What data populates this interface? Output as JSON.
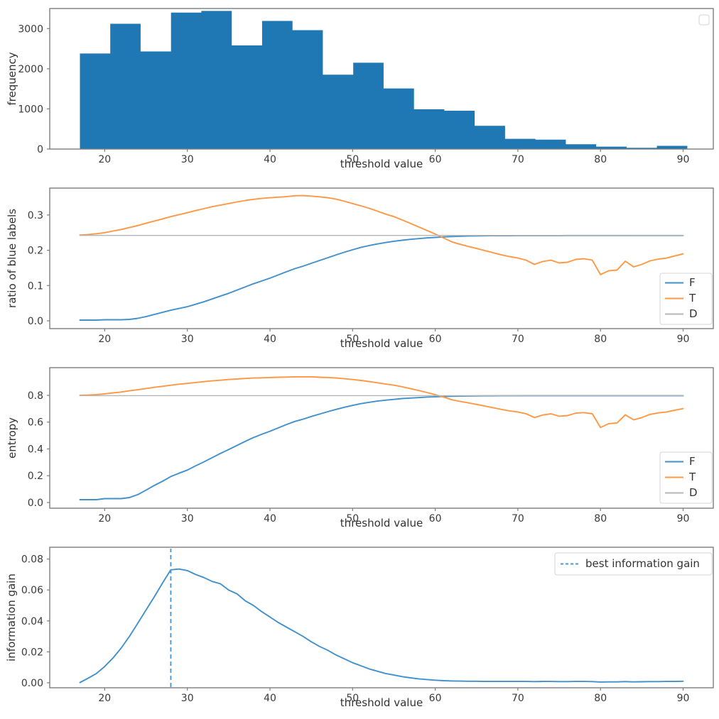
{
  "figure": {
    "background": "#ffffff"
  },
  "palette": {
    "hist_fill": "#1f77b4",
    "line_blue": "#4191cd",
    "line_orange": "#ff9844",
    "line_gray": "#b5b5b5",
    "dashed_blue": "#4a9bd5",
    "spine": "#7d7d7d",
    "tick_text": "#3a3a3a",
    "legend_border": "#d4d4d4"
  },
  "chart_data": [
    {
      "type": "histogram",
      "title": "",
      "xlabel": "threshold value",
      "ylabel": "frequency",
      "xlim": [
        13.35,
        93.65
      ],
      "ylim": [
        0,
        3500
      ],
      "xticks": [
        20,
        30,
        40,
        50,
        60,
        70,
        80,
        90
      ],
      "xtick_labels": [
        "20",
        "30",
        "40",
        "50",
        "60",
        "70",
        "80",
        "90"
      ],
      "yticks": [
        0,
        1000,
        2000,
        3000
      ],
      "ytick_labels": [
        "0",
        "1000",
        "2000",
        "3000"
      ],
      "grid": false,
      "bins": {
        "start": 17,
        "width": 3.675
      },
      "values": [
        2380,
        3120,
        2430,
        3400,
        3440,
        2580,
        3190,
        2960,
        1850,
        2150,
        1510,
        990,
        955,
        580,
        255,
        235,
        120,
        60,
        30,
        80
      ],
      "color": "hist_fill",
      "legend": {
        "position": "upper right",
        "empty": true,
        "entries": []
      }
    },
    {
      "type": "line",
      "title": "",
      "xlabel": "threshold value",
      "ylabel": "ratio of blue labels",
      "xlim": [
        13.35,
        93.65
      ],
      "ylim": [
        -0.0221,
        0.3763
      ],
      "xticks": [
        20,
        30,
        40,
        50,
        60,
        70,
        80,
        90
      ],
      "xtick_labels": [
        "20",
        "30",
        "40",
        "50",
        "60",
        "70",
        "80",
        "90"
      ],
      "yticks": [
        0,
        0.1,
        0.2,
        0.3
      ],
      "ytick_labels": [
        "0.0",
        "0.1",
        "0.2",
        "0.3"
      ],
      "grid": false,
      "x_start": 17,
      "x_step": 1,
      "x_count": 74,
      "series": [
        {
          "name": "F",
          "color": "line_blue",
          "values": [
            0.002,
            0.002,
            0.002,
            0.003,
            0.003,
            0.003,
            0.004,
            0.007,
            0.012,
            0.018,
            0.024,
            0.03,
            0.035,
            0.04,
            0.047,
            0.054,
            0.062,
            0.07,
            0.078,
            0.087,
            0.096,
            0.105,
            0.113,
            0.121,
            0.13,
            0.139,
            0.148,
            0.155,
            0.163,
            0.171,
            0.179,
            0.187,
            0.1945,
            0.2015,
            0.208,
            0.2135,
            0.218,
            0.222,
            0.2255,
            0.2285,
            0.231,
            0.233,
            0.235,
            0.2365,
            0.2378,
            0.2388,
            0.2396,
            0.2402,
            0.2407,
            0.241,
            0.2412,
            0.2414,
            0.2415,
            0.2416,
            0.2416,
            0.2417,
            0.2417,
            0.2417,
            0.2417,
            0.2418,
            0.2418,
            0.2418,
            0.2418,
            0.2418,
            0.2418,
            0.2418,
            0.2418,
            0.2418,
            0.2418,
            0.2418,
            0.2418,
            0.2418,
            0.2418,
            0.2418
          ]
        },
        {
          "name": "T",
          "color": "line_orange",
          "values": [
            0.243,
            0.2445,
            0.247,
            0.25,
            0.2545,
            0.259,
            0.2645,
            0.27,
            0.2765,
            0.283,
            0.289,
            0.2955,
            0.301,
            0.3065,
            0.3125,
            0.318,
            0.3235,
            0.328,
            0.3325,
            0.337,
            0.341,
            0.3445,
            0.347,
            0.349,
            0.3505,
            0.352,
            0.3545,
            0.355,
            0.3535,
            0.3515,
            0.349,
            0.345,
            0.339,
            0.3325,
            0.326,
            0.319,
            0.311,
            0.3025,
            0.2955,
            0.286,
            0.276,
            0.266,
            0.256,
            0.246,
            0.235,
            0.224,
            0.217,
            0.211,
            0.205,
            0.199,
            0.193,
            0.187,
            0.182,
            0.178,
            0.172,
            0.16,
            0.168,
            0.172,
            0.164,
            0.166,
            0.174,
            0.176,
            0.172,
            0.131,
            0.142,
            0.144,
            0.169,
            0.153,
            0.16,
            0.17,
            0.175,
            0.178,
            0.184,
            0.19
          ]
        },
        {
          "name": "D",
          "color": "line_gray",
          "constant": 0.242,
          "width": 1.4
        }
      ],
      "legend": {
        "position": "lower right",
        "entries": [
          {
            "label": "F",
            "color": "line_blue"
          },
          {
            "label": "T",
            "color": "line_orange"
          },
          {
            "label": "D",
            "color": "line_gray"
          }
        ]
      }
    },
    {
      "type": "line",
      "title": "",
      "xlabel": "threshold value",
      "ylabel": "entropy",
      "xlim": [
        13.35,
        93.65
      ],
      "ylim": [
        -0.0424,
        1.0066
      ],
      "xticks": [
        20,
        30,
        40,
        50,
        60,
        70,
        80,
        90
      ],
      "xtick_labels": [
        "20",
        "30",
        "40",
        "50",
        "60",
        "70",
        "80",
        "90"
      ],
      "yticks": [
        0,
        0.2,
        0.4,
        0.6,
        0.8
      ],
      "ytick_labels": [
        "0.0",
        "0.2",
        "0.4",
        "0.6",
        "0.8"
      ],
      "grid": false,
      "x_start": 17,
      "x_step": 1,
      "x_count": 74,
      "series": [
        {
          "name": "F",
          "color": "line_blue",
          "values": [
            0.021,
            0.021,
            0.021,
            0.029,
            0.029,
            0.029,
            0.037,
            0.059,
            0.092,
            0.127,
            0.159,
            0.194,
            0.219,
            0.242,
            0.274,
            0.303,
            0.335,
            0.366,
            0.395,
            0.426,
            0.456,
            0.485,
            0.509,
            0.532,
            0.557,
            0.582,
            0.605,
            0.622,
            0.642,
            0.66,
            0.678,
            0.695,
            0.711,
            0.725,
            0.738,
            0.748,
            0.757,
            0.764,
            0.77,
            0.776,
            0.78,
            0.783,
            0.787,
            0.789,
            0.791,
            0.793,
            0.794,
            0.795,
            0.796,
            0.7962,
            0.7965,
            0.7967,
            0.7969,
            0.797,
            0.7971,
            0.7972,
            0.7972,
            0.7973,
            0.7973,
            0.7973,
            0.7974,
            0.7974,
            0.7974,
            0.7974,
            0.7974,
            0.7974,
            0.7974,
            0.7974,
            0.7974,
            0.7974,
            0.7974,
            0.7974,
            0.7974,
            0.7974
          ]
        },
        {
          "name": "T",
          "color": "line_orange",
          "values": [
            0.8,
            0.802,
            0.806,
            0.811,
            0.818,
            0.825,
            0.834,
            0.842,
            0.851,
            0.86,
            0.867,
            0.876,
            0.883,
            0.889,
            0.896,
            0.902,
            0.908,
            0.913,
            0.918,
            0.922,
            0.926,
            0.929,
            0.931,
            0.933,
            0.935,
            0.936,
            0.938,
            0.938,
            0.938,
            0.935,
            0.933,
            0.93,
            0.924,
            0.918,
            0.911,
            0.903,
            0.894,
            0.884,
            0.876,
            0.864,
            0.85,
            0.836,
            0.821,
            0.805,
            0.787,
            0.767,
            0.755,
            0.744,
            0.732,
            0.72,
            0.708,
            0.695,
            0.684,
            0.676,
            0.662,
            0.634,
            0.653,
            0.662,
            0.644,
            0.649,
            0.667,
            0.671,
            0.662,
            0.56,
            0.589,
            0.594,
            0.655,
            0.617,
            0.634,
            0.658,
            0.669,
            0.676,
            0.689,
            0.701
          ]
        },
        {
          "name": "D",
          "color": "line_gray",
          "constant": 0.798,
          "width": 1.4
        }
      ],
      "legend": {
        "position": "lower right",
        "entries": [
          {
            "label": "F",
            "color": "line_blue"
          },
          {
            "label": "T",
            "color": "line_orange"
          },
          {
            "label": "D",
            "color": "line_gray"
          }
        ]
      }
    },
    {
      "type": "line",
      "title": "",
      "xlabel": "threshold value",
      "ylabel": "information gain",
      "xlim": [
        13.35,
        93.65
      ],
      "ylim": [
        -0.0032,
        0.0876
      ],
      "xticks": [
        20,
        30,
        40,
        50,
        60,
        70,
        80,
        90
      ],
      "xtick_labels": [
        "20",
        "30",
        "40",
        "50",
        "60",
        "70",
        "80",
        "90"
      ],
      "yticks": [
        0,
        0.02,
        0.04,
        0.06,
        0.08
      ],
      "ytick_labels": [
        "0.00",
        "0.02",
        "0.04",
        "0.06",
        "0.08"
      ],
      "grid": false,
      "x_start": 17,
      "x_step": 1,
      "x_count": 74,
      "series": [
        {
          "name": "information gain",
          "color": "line_blue",
          "values": [
            0.0002,
            0.003,
            0.006,
            0.0105,
            0.016,
            0.0225,
            0.03,
            0.0385,
            0.047,
            0.0555,
            0.0645,
            0.073,
            0.0735,
            0.0725,
            0.07,
            0.068,
            0.0655,
            0.064,
            0.06,
            0.0575,
            0.053,
            0.05,
            0.046,
            0.0425,
            0.039,
            0.036,
            0.033,
            0.03,
            0.0265,
            0.0235,
            0.021,
            0.018,
            0.0155,
            0.013,
            0.011,
            0.009,
            0.0075,
            0.006,
            0.005,
            0.004,
            0.0032,
            0.0026,
            0.0021,
            0.0017,
            0.0014,
            0.0012,
            0.0011,
            0.001,
            0.001,
            0.0009,
            0.0009,
            0.0009,
            0.0009,
            0.0009,
            0.0009,
            0.0008,
            0.0009,
            0.0009,
            0.0008,
            0.0008,
            0.0009,
            0.0009,
            0.0008,
            0.0005,
            0.0006,
            0.0006,
            0.0008,
            0.0006,
            0.0007,
            0.0008,
            0.0008,
            0.0009,
            0.0009,
            0.001
          ]
        }
      ],
      "vline": {
        "x": 28,
        "style": "dashed",
        "color": "dashed_blue"
      },
      "legend": {
        "position": "upper right",
        "entries": [
          {
            "label": "best information gain",
            "color": "dashed_blue",
            "dashed": true
          }
        ]
      }
    }
  ]
}
